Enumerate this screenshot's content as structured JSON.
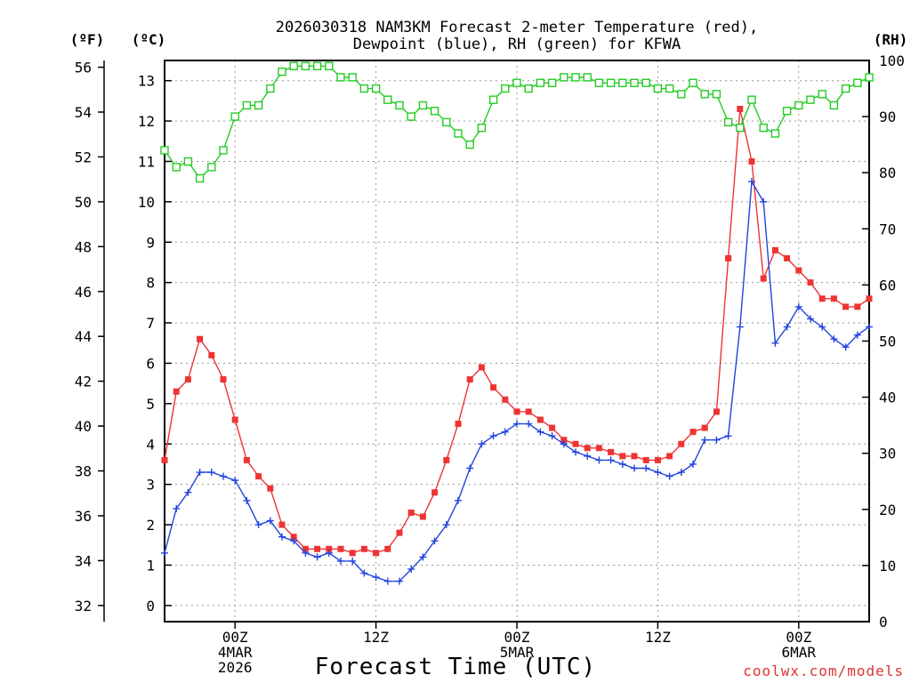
{
  "chart_data": {
    "type": "line",
    "title_lines": [
      "2026030318 NAM3KM Forecast 2-meter Temperature (red),",
      "Dewpoint (blue), RH (green) for KFWA"
    ],
    "xlabel": "Forecast Time (UTC)",
    "credit": "coolwx.com/models",
    "unit_labels": {
      "f": "(ºF)",
      "c": "(ºC)",
      "rh": "(RH)"
    },
    "x_ticks": [
      {
        "x": 0,
        "lines": [
          "00Z",
          "4MAR",
          "2026"
        ]
      },
      {
        "x": 12,
        "lines": [
          "12Z"
        ]
      },
      {
        "x": 24,
        "lines": [
          "00Z",
          "5MAR"
        ]
      },
      {
        "x": 36,
        "lines": [
          "12Z"
        ]
      },
      {
        "x": 48,
        "lines": [
          "00Z",
          "6MAR"
        ]
      }
    ],
    "x_range": [
      -6,
      54
    ],
    "c_range": [
      -0.4,
      13.5
    ],
    "rh_range": [
      0,
      100
    ],
    "f_ticks": [
      "32",
      "34",
      "36",
      "38",
      "40",
      "42",
      "44",
      "46",
      "48",
      "50",
      "52",
      "54",
      "56"
    ],
    "c_ticks": [
      "0",
      "1",
      "2",
      "3",
      "4",
      "5",
      "6",
      "7",
      "8",
      "9",
      "10",
      "11",
      "12",
      "13"
    ],
    "rh_ticks": [
      "0",
      "10",
      "20",
      "30",
      "40",
      "50",
      "60",
      "70",
      "80",
      "90",
      "100"
    ],
    "series": [
      {
        "name": "Temperature",
        "color": "#ee3333",
        "marker": "filled-square",
        "axis": "c",
        "x": [
          -6,
          -5,
          -4,
          -3,
          -2,
          -1,
          0,
          1,
          2,
          3,
          4,
          5,
          6,
          7,
          8,
          9,
          10,
          11,
          12,
          13,
          14,
          15,
          16,
          17,
          18,
          19,
          20,
          21,
          22,
          23,
          24,
          25,
          26,
          27,
          28,
          29,
          30,
          31,
          32,
          33,
          34,
          35,
          36,
          37,
          38,
          39,
          40,
          41,
          42,
          43,
          44,
          45,
          46,
          47,
          48,
          49,
          50,
          51,
          52,
          53,
          54
        ],
        "values": [
          3.6,
          5.3,
          5.6,
          6.6,
          6.2,
          5.6,
          4.6,
          3.6,
          3.2,
          2.9,
          2.0,
          1.7,
          1.4,
          1.4,
          1.4,
          1.4,
          1.3,
          1.4,
          1.3,
          1.4,
          1.8,
          2.3,
          2.2,
          2.8,
          3.6,
          4.5,
          5.6,
          5.9,
          5.4,
          5.1,
          4.8,
          4.8,
          4.6,
          4.4,
          4.1,
          4.0,
          3.9,
          3.9,
          3.8,
          3.7,
          3.7,
          3.6,
          3.6,
          3.7,
          4.0,
          4.3,
          4.4,
          4.8,
          8.6,
          12.3,
          11.0,
          8.1,
          8.8,
          8.6,
          8.3,
          8.0,
          7.6,
          7.6,
          7.4,
          7.4,
          7.6
        ]
      },
      {
        "name": "Dewpoint",
        "color": "#2244dd",
        "marker": "plus",
        "axis": "c",
        "x": [
          -6,
          -5,
          -4,
          -3,
          -2,
          -1,
          0,
          1,
          2,
          3,
          4,
          5,
          6,
          7,
          8,
          9,
          10,
          11,
          12,
          13,
          14,
          15,
          16,
          17,
          18,
          19,
          20,
          21,
          22,
          23,
          24,
          25,
          26,
          27,
          28,
          29,
          30,
          31,
          32,
          33,
          34,
          35,
          36,
          37,
          38,
          39,
          40,
          41,
          42,
          43,
          44,
          45,
          46,
          47,
          48,
          49,
          50,
          51,
          52,
          53,
          54
        ],
        "values": [
          1.3,
          2.4,
          2.8,
          3.3,
          3.3,
          3.2,
          3.1,
          2.6,
          2.0,
          2.1,
          1.7,
          1.6,
          1.3,
          1.2,
          1.3,
          1.1,
          1.1,
          0.8,
          0.7,
          0.6,
          0.6,
          0.9,
          1.2,
          1.6,
          2.0,
          2.6,
          3.4,
          4.0,
          4.2,
          4.3,
          4.5,
          4.5,
          4.3,
          4.2,
          4.0,
          3.8,
          3.7,
          3.6,
          3.6,
          3.5,
          3.4,
          3.4,
          3.3,
          3.2,
          3.3,
          3.5,
          4.1,
          4.1,
          4.2,
          6.9,
          10.5,
          10.0,
          6.5,
          6.9,
          7.4,
          7.1,
          6.9,
          6.6,
          6.4,
          6.7,
          6.9
        ]
      },
      {
        "name": "RH",
        "color": "#22cc22",
        "marker": "open-square",
        "axis": "rh",
        "x": [
          -6,
          -5,
          -4,
          -3,
          -2,
          -1,
          0,
          1,
          2,
          3,
          4,
          5,
          6,
          7,
          8,
          9,
          10,
          11,
          12,
          13,
          14,
          15,
          16,
          17,
          18,
          19,
          20,
          21,
          22,
          23,
          24,
          25,
          26,
          27,
          28,
          29,
          30,
          31,
          32,
          33,
          34,
          35,
          36,
          37,
          38,
          39,
          40,
          41,
          42,
          43,
          44,
          45,
          46,
          47,
          48,
          49,
          50,
          51,
          52,
          53,
          54
        ],
        "values": [
          84,
          81,
          82,
          79,
          81,
          84,
          90,
          92,
          92,
          95,
          98,
          99,
          99,
          99,
          99,
          97,
          97,
          95,
          95,
          93,
          92,
          90,
          92,
          91,
          89,
          87,
          85,
          88,
          93,
          95,
          96,
          95,
          96,
          96,
          97,
          97,
          97,
          96,
          96,
          96,
          96,
          96,
          95,
          95,
          94,
          96,
          94,
          94,
          89,
          88,
          93,
          88,
          87,
          91,
          92,
          93,
          94,
          92,
          95,
          96,
          97
        ]
      }
    ]
  }
}
